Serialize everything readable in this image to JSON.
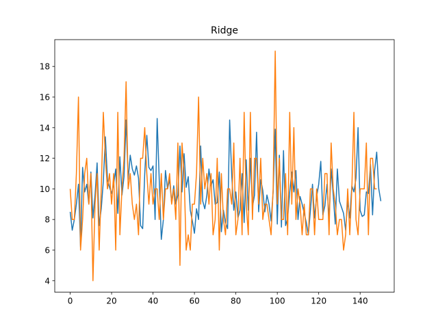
{
  "chart_data": {
    "type": "line",
    "title": "Ridge",
    "xlabel": "",
    "ylabel": "",
    "xlim": [
      -7.45,
      156.45
    ],
    "ylim": [
      3.25,
      19.75
    ],
    "xticks": [
      0,
      20,
      40,
      60,
      80,
      100,
      120,
      140
    ],
    "yticks": [
      4,
      6,
      8,
      10,
      12,
      14,
      16,
      18
    ],
    "grid": false,
    "series": [
      {
        "color": "#1f77b4",
        "values": [
          8.5,
          7.3,
          8.0,
          9.0,
          10.3,
          6.2,
          11.4,
          9.8,
          10.3,
          9.0,
          11.1,
          8.1,
          9.6,
          11.7,
          7.6,
          8.7,
          10.5,
          13.4,
          10.6,
          10.1,
          9.7,
          10.3,
          11.3,
          8.4,
          12.1,
          9.6,
          10.8,
          14.5,
          10.6,
          12.2,
          11.3,
          10.9,
          11.5,
          10.7,
          7.6,
          7.4,
          11.0,
          13.5,
          11.4,
          11.2,
          11.5,
          8.0,
          14.6,
          10.6,
          6.7,
          8.0,
          11.2,
          10.0,
          10.6,
          9.1,
          10.2,
          9.0,
          9.6,
          12.8,
          9.8,
          12.3,
          10.1,
          10.8,
          8.6,
          7.9,
          7.1,
          8.7,
          8.0,
          12.8,
          9.2,
          8.7,
          9.6,
          11.3,
          10.2,
          10.6,
          9.0,
          9.1,
          11.1,
          7.2,
          8.6,
          7.8,
          7.4,
          14.5,
          10.9,
          8.6,
          9.8,
          8.1,
          8.6,
          11.0,
          7.8,
          11.9,
          8.6,
          12.0,
          8.8,
          9.6,
          13.7,
          8.5,
          10.6,
          9.9,
          8.5,
          9.6,
          9.0,
          7.9,
          9.8,
          13.9,
          7.7,
          12.2,
          7.5,
          12.5,
          7.6,
          8.1,
          9.8,
          11.1,
          9.8,
          11.2,
          8.0,
          9.5,
          9.0,
          8.4,
          7.8,
          7.0,
          8.6,
          10.3,
          8.1,
          9.5,
          10.3,
          11.8,
          8.3,
          8.9,
          10.3,
          8.0,
          11.3,
          9.6,
          7.7,
          11.3,
          9.2,
          8.8,
          8.4,
          7.3,
          9.2,
          8.1,
          10.2,
          9.8,
          10.7,
          14.0,
          8.6,
          8.2,
          8.3,
          9.8,
          9.7,
          11.6,
          8.3,
          11.2,
          12.4,
          10.0,
          9.2
        ]
      },
      {
        "color": "#ff7f0e",
        "values": [
          10,
          8,
          8,
          11,
          16,
          6,
          8,
          11,
          12,
          9,
          11,
          4,
          9,
          11,
          6,
          10,
          15,
          12,
          10,
          11,
          9,
          11,
          6,
          15,
          7,
          10,
          12,
          17,
          10,
          11,
          9,
          8,
          9,
          7,
          12,
          12,
          14,
          11,
          9,
          11,
          9,
          10,
          10,
          8,
          11,
          8,
          10,
          10,
          11,
          9,
          10,
          8,
          13,
          5,
          13,
          11,
          6,
          7,
          6,
          9,
          9,
          11,
          16,
          9,
          12,
          10,
          11,
          9,
          11,
          7,
          8,
          12,
          6,
          11,
          8,
          7,
          10,
          10,
          9,
          13,
          7,
          8,
          12,
          7,
          15,
          9,
          7,
          15,
          8,
          12,
          12,
          9,
          12,
          8,
          9,
          9,
          8,
          7,
          10,
          19,
          9,
          12,
          8,
          8,
          11,
          7,
          15,
          9,
          14,
          8,
          10,
          9,
          7,
          9,
          7,
          7,
          10,
          10,
          7,
          10,
          8,
          8,
          8,
          11,
          11,
          7,
          13,
          10,
          9,
          7,
          8,
          8,
          6,
          7,
          10,
          7,
          10,
          15,
          8,
          7,
          10,
          10,
          10,
          13,
          7,
          12,
          12,
          10,
          10
        ]
      }
    ]
  }
}
